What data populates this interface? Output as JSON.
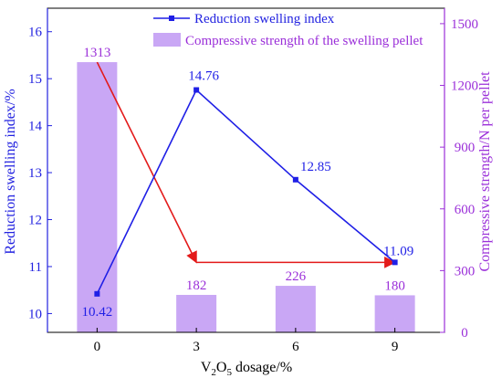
{
  "chart_data": {
    "type": "bar+line",
    "title": "",
    "xlabel_main": "V",
    "xlabel_sub1": "2",
    "xlabel_mid": "O",
    "xlabel_sub2": "5",
    "xlabel_tail": " dosage/%",
    "ylabel_left": "Reduction swelling index/%",
    "ylabel_right": "Compressive strength/N per pellet",
    "categories": [
      "0",
      "3",
      "6",
      "9"
    ],
    "x_ticks": [
      "0",
      "3",
      "6",
      "9"
    ],
    "y_left_ticks": [
      "10",
      "11",
      "12",
      "13",
      "14",
      "15",
      "16"
    ],
    "y_right_ticks": [
      "0",
      "300",
      "600",
      "900",
      "1200",
      "1500"
    ],
    "y_left_range": [
      9.6,
      16.5
    ],
    "y_right_range": [
      0,
      1575
    ],
    "series": [
      {
        "name": "Reduction swelling index",
        "type": "line",
        "axis": "left",
        "values": [
          10.42,
          14.76,
          12.85,
          11.09
        ],
        "labels": [
          "10.42",
          "14.76",
          "12.85",
          "11.09"
        ],
        "color": "#1f1fe6"
      },
      {
        "name": "Compressive strength of the swelling pellet",
        "type": "bar",
        "axis": "right",
        "values": [
          1313,
          182,
          226,
          180
        ],
        "labels": [
          "1313",
          "182",
          "226",
          "180"
        ],
        "color": "#c9a7f5"
      }
    ],
    "trend_arrows": {
      "color": "#e31a1a",
      "from_category": 0,
      "to_category": 1,
      "end_category": 3,
      "start_value": 1313,
      "end_value": 340
    },
    "legend_position": "top-center",
    "colors": {
      "left_axis": "#2222e0",
      "right_axis": "#9b30d9",
      "frame": "#000000",
      "arrow": "#e31a1a"
    }
  }
}
